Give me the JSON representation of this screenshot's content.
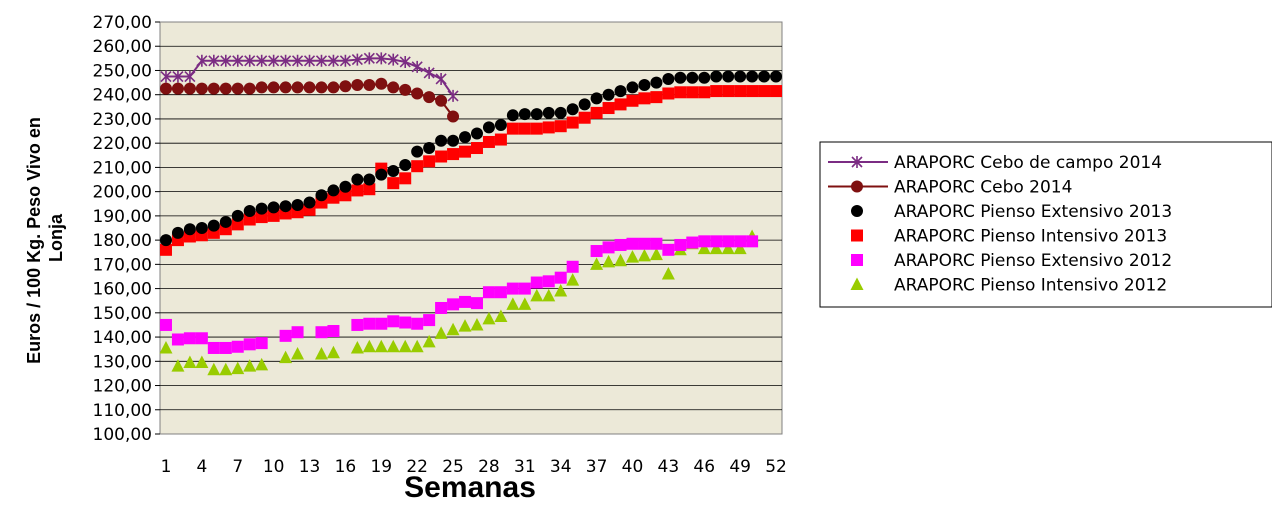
{
  "chart_data": {
    "type": "line",
    "title": "",
    "xlabel": "Semanas",
    "ylabel": "Euros / 100 Kg. Peso Vivo en Lonja",
    "ylabel_lines": [
      "Euros / 100 Kg. Peso Vivo en",
      "Lonja"
    ],
    "ylim": [
      100,
      270
    ],
    "xlim": [
      1,
      52
    ],
    "y_ticks": [
      "100,00",
      "110,00",
      "120,00",
      "130,00",
      "140,00",
      "150,00",
      "160,00",
      "170,00",
      "180,00",
      "190,00",
      "200,00",
      "210,00",
      "220,00",
      "230,00",
      "240,00",
      "250,00",
      "260,00",
      "270,00"
    ],
    "x_ticks": [
      "1",
      "4",
      "7",
      "10",
      "13",
      "16",
      "19",
      "22",
      "25",
      "28",
      "31",
      "34",
      "37",
      "40",
      "43",
      "46",
      "49",
      "52"
    ],
    "grid": "horizontal",
    "plot_background": "#ECE9D8",
    "legend_position": "right",
    "series": [
      {
        "name": "ARAPORC Cebo de campo 2014",
        "marker": "star",
        "line": true,
        "color": "#7B2C83",
        "points": [
          [
            1,
            247.5
          ],
          [
            2,
            247.5
          ],
          [
            3,
            247.5
          ],
          [
            4,
            254
          ],
          [
            5,
            254
          ],
          [
            6,
            254
          ],
          [
            7,
            254
          ],
          [
            8,
            254
          ],
          [
            9,
            254
          ],
          [
            10,
            254
          ],
          [
            11,
            254
          ],
          [
            12,
            254
          ],
          [
            13,
            254
          ],
          [
            14,
            254
          ],
          [
            15,
            254
          ],
          [
            16,
            254
          ],
          [
            17,
            254.5
          ],
          [
            18,
            255
          ],
          [
            19,
            255
          ],
          [
            20,
            254.5
          ],
          [
            21,
            253.5
          ],
          [
            22,
            251.5
          ],
          [
            23,
            249
          ],
          [
            24,
            246.5
          ],
          [
            25,
            239.5
          ]
        ]
      },
      {
        "name": "ARAPORC Cebo 2014",
        "marker": "circle",
        "line": true,
        "color": "#7F1010",
        "points": [
          [
            1,
            242.5
          ],
          [
            2,
            242.5
          ],
          [
            3,
            242.5
          ],
          [
            4,
            242.5
          ],
          [
            5,
            242.5
          ],
          [
            6,
            242.5
          ],
          [
            7,
            242.5
          ],
          [
            8,
            242.5
          ],
          [
            9,
            243
          ],
          [
            10,
            243
          ],
          [
            11,
            243
          ],
          [
            12,
            243
          ],
          [
            13,
            243
          ],
          [
            14,
            243
          ],
          [
            15,
            243
          ],
          [
            16,
            243.5
          ],
          [
            17,
            244
          ],
          [
            18,
            244
          ],
          [
            19,
            244.5
          ],
          [
            20,
            243
          ],
          [
            21,
            242
          ],
          [
            22,
            240.5
          ],
          [
            23,
            239
          ],
          [
            24,
            237.5
          ],
          [
            25,
            231
          ]
        ]
      },
      {
        "name": "ARAPORC Pienso Extensivo 2013",
        "marker": "circle",
        "line": false,
        "color": "#000000",
        "points": [
          [
            1,
            180
          ],
          [
            2,
            183
          ],
          [
            3,
            184.5
          ],
          [
            4,
            185
          ],
          [
            5,
            186
          ],
          [
            6,
            187.5
          ],
          [
            7,
            190
          ],
          [
            8,
            192
          ],
          [
            9,
            193
          ],
          [
            10,
            193.5
          ],
          [
            11,
            194
          ],
          [
            12,
            194.5
          ],
          [
            13,
            195.5
          ],
          [
            14,
            198.5
          ],
          [
            15,
            200.5
          ],
          [
            16,
            202
          ],
          [
            17,
            205
          ],
          [
            18,
            205
          ],
          [
            19,
            207
          ],
          [
            20,
            208.5
          ],
          [
            21,
            211
          ],
          [
            22,
            216.5
          ],
          [
            23,
            218
          ],
          [
            24,
            221
          ],
          [
            25,
            221
          ],
          [
            26,
            222.5
          ],
          [
            27,
            224
          ],
          [
            28,
            226.5
          ],
          [
            29,
            227.5
          ],
          [
            30,
            231.5
          ],
          [
            31,
            232
          ],
          [
            32,
            232
          ],
          [
            33,
            232.5
          ],
          [
            34,
            232.5
          ],
          [
            35,
            234
          ],
          [
            36,
            236
          ],
          [
            37,
            238.5
          ],
          [
            38,
            240
          ],
          [
            39,
            241.5
          ],
          [
            40,
            243
          ],
          [
            41,
            244
          ],
          [
            42,
            245
          ],
          [
            43,
            246.5
          ],
          [
            44,
            247
          ],
          [
            45,
            247
          ],
          [
            46,
            247
          ],
          [
            47,
            247.5
          ],
          [
            48,
            247.5
          ],
          [
            49,
            247.5
          ],
          [
            50,
            247.5
          ],
          [
            51,
            247.5
          ],
          [
            52,
            247.5
          ]
        ]
      },
      {
        "name": "ARAPORC Pienso Intensivo 2013",
        "marker": "square",
        "line": false,
        "color": "#FF0000",
        "points": [
          [
            1,
            176
          ],
          [
            2,
            180
          ],
          [
            3,
            181.5
          ],
          [
            4,
            182
          ],
          [
            5,
            183
          ],
          [
            6,
            184.5
          ],
          [
            7,
            186.5
          ],
          [
            8,
            188.5
          ],
          [
            9,
            189.5
          ],
          [
            10,
            190
          ],
          [
            11,
            191
          ],
          [
            12,
            191.5
          ],
          [
            13,
            192.5
          ],
          [
            14,
            195.5
          ],
          [
            15,
            197.5
          ],
          [
            16,
            198.5
          ],
          [
            17,
            200.5
          ],
          [
            18,
            201
          ],
          [
            19,
            209.5
          ],
          [
            20,
            203.5
          ],
          [
            21,
            205.5
          ],
          [
            22,
            210.5
          ],
          [
            23,
            212.5
          ],
          [
            24,
            214.5
          ],
          [
            25,
            215.5
          ],
          [
            26,
            216.5
          ],
          [
            27,
            218
          ],
          [
            28,
            220.5
          ],
          [
            29,
            221.5
          ],
          [
            30,
            226
          ],
          [
            31,
            226
          ],
          [
            32,
            226
          ],
          [
            33,
            226.5
          ],
          [
            34,
            227
          ],
          [
            35,
            228.5
          ],
          [
            36,
            230.5
          ],
          [
            37,
            232.5
          ],
          [
            38,
            234.5
          ],
          [
            39,
            236
          ],
          [
            40,
            237.5
          ],
          [
            41,
            238.5
          ],
          [
            42,
            239
          ],
          [
            43,
            240.5
          ],
          [
            44,
            241
          ],
          [
            45,
            241
          ],
          [
            46,
            241
          ],
          [
            47,
            241.5
          ],
          [
            48,
            241.5
          ],
          [
            49,
            241.5
          ],
          [
            50,
            241.5
          ],
          [
            51,
            241.5
          ],
          [
            52,
            241.5
          ]
        ]
      },
      {
        "name": "ARAPORC Pienso Extensivo 2012",
        "marker": "square",
        "line": false,
        "color": "#FF00FF",
        "points": [
          [
            1,
            145
          ],
          [
            2,
            139
          ],
          [
            3,
            139.5
          ],
          [
            4,
            139.5
          ],
          [
            5,
            135.5
          ],
          [
            6,
            135.5
          ],
          [
            7,
            136
          ],
          [
            8,
            137
          ],
          [
            9,
            137.5
          ],
          [
            11,
            140.5
          ],
          [
            12,
            142
          ],
          [
            14,
            142
          ],
          [
            15,
            142.5
          ],
          [
            17,
            145
          ],
          [
            18,
            145.5
          ],
          [
            19,
            145.5
          ],
          [
            20,
            146.5
          ],
          [
            21,
            146
          ],
          [
            22,
            145.5
          ],
          [
            23,
            147
          ],
          [
            24,
            152
          ],
          [
            25,
            153.5
          ],
          [
            26,
            154.5
          ],
          [
            27,
            154
          ],
          [
            28,
            158.5
          ],
          [
            29,
            158.5
          ],
          [
            30,
            160
          ],
          [
            31,
            160
          ],
          [
            32,
            162.5
          ],
          [
            33,
            163
          ],
          [
            34,
            164.5
          ],
          [
            35,
            169
          ],
          [
            37,
            175.5
          ],
          [
            38,
            177
          ],
          [
            39,
            178
          ],
          [
            40,
            178.5
          ],
          [
            41,
            178.5
          ],
          [
            42,
            178.5
          ],
          [
            43,
            176
          ],
          [
            44,
            178
          ],
          [
            45,
            179
          ],
          [
            46,
            179.5
          ],
          [
            47,
            179.5
          ],
          [
            48,
            179.5
          ],
          [
            49,
            179.5
          ],
          [
            50,
            179.5
          ]
        ]
      },
      {
        "name": "ARAPORC Pienso Intensivo 2012",
        "marker": "triangle",
        "line": false,
        "color": "#99CC00",
        "points": [
          [
            1,
            135.5
          ],
          [
            2,
            128
          ],
          [
            3,
            129.5
          ],
          [
            4,
            129.5
          ],
          [
            5,
            126.5
          ],
          [
            6,
            126.5
          ],
          [
            7,
            127
          ],
          [
            8,
            128
          ],
          [
            9,
            128.5
          ],
          [
            11,
            131.5
          ],
          [
            12,
            133
          ],
          [
            14,
            133
          ],
          [
            15,
            133.5
          ],
          [
            17,
            135.5
          ],
          [
            18,
            136
          ],
          [
            19,
            136
          ],
          [
            20,
            136
          ],
          [
            21,
            136
          ],
          [
            22,
            136
          ],
          [
            23,
            138
          ],
          [
            24,
            141.5
          ],
          [
            25,
            143
          ],
          [
            26,
            144.5
          ],
          [
            27,
            145
          ],
          [
            28,
            147.5
          ],
          [
            29,
            148.5
          ],
          [
            30,
            153.5
          ],
          [
            31,
            153.5
          ],
          [
            32,
            157
          ],
          [
            33,
            157
          ],
          [
            34,
            159
          ],
          [
            35,
            163.5
          ],
          [
            37,
            170
          ],
          [
            38,
            171
          ],
          [
            39,
            171.5
          ],
          [
            40,
            173
          ],
          [
            41,
            173.5
          ],
          [
            42,
            174
          ],
          [
            43,
            166
          ],
          [
            44,
            176
          ],
          [
            45,
            178.5
          ],
          [
            46,
            176.5
          ],
          [
            47,
            176.5
          ],
          [
            48,
            176.5
          ],
          [
            49,
            176.5
          ],
          [
            50,
            181.5
          ]
        ]
      }
    ]
  }
}
